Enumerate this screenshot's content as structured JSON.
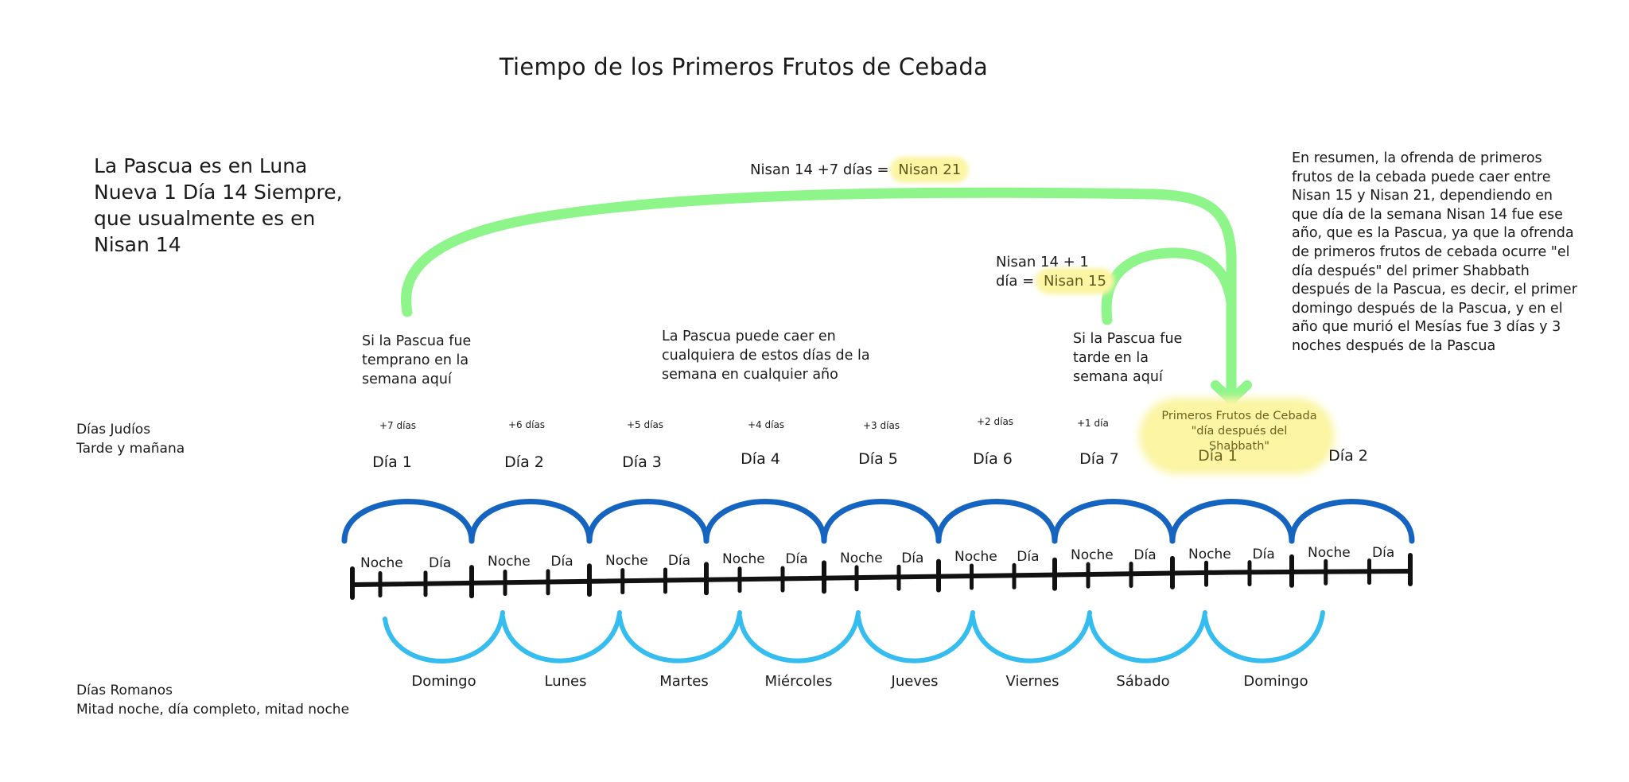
{
  "title": "Tiempo de los Primeros Frutos de Cebada",
  "left_note": "La Pascua es en Luna Nueva 1 Día 14 Siempre, que usualmente es en Nisan 14",
  "summary": "En resumen, la ofrenda de primeros frutos de la cebada puede caer entre Nisan 15 y Nisan 21, dependiendo en que día de la semana Nisan 14 fue ese año, que es la Pascua, ya que la ofrenda de primeros frutos de cebada ocurre \"el día después\" del primer Shabbath después de la Pascua, es decir, el primer domingo después de la Pascua, y en el año que murió el Mesías fue 3 días y 3 noches después de la Pascua",
  "plus7": {
    "prefix": "Nisan 14 +7 días =",
    "highlight": "Nisan 21"
  },
  "plus1": {
    "prefix": "Nisan 14 + 1 día =",
    "highlight": "Nisan 15"
  },
  "early_note": "Si la Pascua fue temprano en la semana aquí",
  "any_note": "La Pascua puede caer en cualquiera de estos días de la semana en cualquier año",
  "late_note": "Si la Pascua fue tarde en la semana aquí",
  "jewish_days": {
    "title": "Días Judíos",
    "subtitle": "Tarde y mañana"
  },
  "roman_days": {
    "title": "Días Romanos",
    "subtitle": "Mitad noche, día completo, mitad noche"
  },
  "offsets": [
    "+7 días",
    "+6 días",
    "+5 días",
    "+4 días",
    "+3 días",
    "+2 días",
    "+1 día"
  ],
  "day_labels": [
    "Día 1",
    "Día 2",
    "Día 3",
    "Día 4",
    "Día 5",
    "Día 6",
    "Día 7",
    "Día 1",
    "Día 2"
  ],
  "night_label": "Noche",
  "day_label": "Día",
  "first_fruits": {
    "line1": "Primeros Frutos de Cebada",
    "line2": "\"día después del Shabbath\""
  },
  "weekdays": [
    "Domingo",
    "Lunes",
    "Martes",
    "Miércoles",
    "Jueves",
    "Viernes",
    "Sábado",
    "Domingo"
  ],
  "colors": {
    "jewish_arcs": "#1565c0",
    "roman_arcs": "#35bdf0",
    "arrows": "#8ef58a",
    "timeline": "#111111",
    "highlight": "#fbf5a4"
  }
}
